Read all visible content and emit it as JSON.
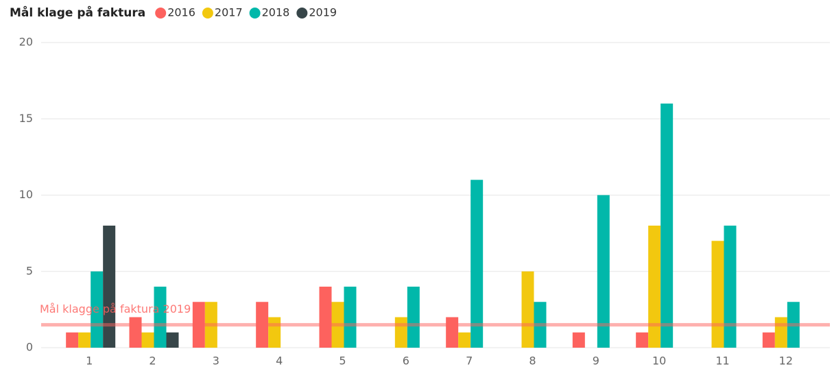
{
  "chart_data": {
    "type": "bar",
    "title": "Mål klage på faktura",
    "categories": [
      "1",
      "2",
      "3",
      "4",
      "5",
      "6",
      "7",
      "8",
      "9",
      "10",
      "11",
      "12"
    ],
    "series": [
      {
        "name": "2016",
        "color": "#FD625E",
        "values": [
          1,
          2,
          3,
          3,
          4,
          null,
          2,
          null,
          1,
          1,
          null,
          1
        ]
      },
      {
        "name": "2017",
        "color": "#F2C80F",
        "values": [
          1,
          1,
          3,
          2,
          3,
          2,
          1,
          5,
          null,
          8,
          7,
          2
        ]
      },
      {
        "name": "2018",
        "color": "#01B8AA",
        "values": [
          5,
          4,
          null,
          null,
          4,
          4,
          11,
          3,
          10,
          16,
          8,
          3
        ]
      },
      {
        "name": "2019",
        "color": "#374649",
        "values": [
          8,
          1,
          null,
          null,
          null,
          null,
          null,
          null,
          null,
          null,
          null,
          null
        ]
      }
    ],
    "ylim": [
      0,
      20
    ],
    "yticks": [
      0,
      5,
      10,
      15,
      20
    ],
    "grid": true,
    "reference_line": {
      "label": "Mål klagge på faktura 2019",
      "value": 1.5,
      "color": "#FD625E"
    }
  }
}
